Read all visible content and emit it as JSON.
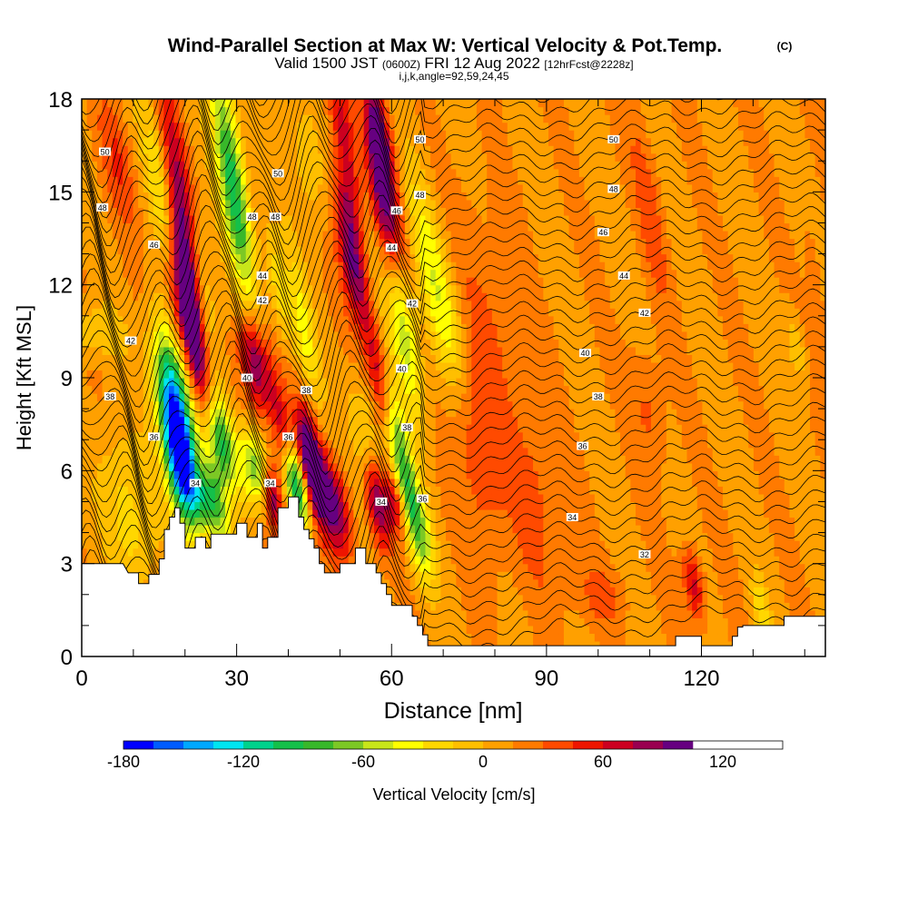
{
  "header": {
    "title": "Wind-Parallel Section at Max W: Vertical Velocity & Pot.Temp.",
    "copyright": "(C)",
    "valid_prefix": "Valid 1500 JST",
    "valid_utc": "(0600Z)",
    "valid_date": "FRI 12 Aug 2022",
    "forecast": "[12hrFcst@2228z]",
    "indices": "i,j,k,angle=92,59,24,45"
  },
  "chart_data": {
    "type": "heatmap",
    "xlabel": "Distance [nm]",
    "ylabel": "Height [Kft MSL]",
    "xlim": [
      0,
      144
    ],
    "ylim": [
      0,
      18
    ],
    "x_ticks": [
      "0",
      "30",
      "60",
      "90",
      "120"
    ],
    "y_ticks": [
      "0",
      "3",
      "6",
      "9",
      "12",
      "15",
      "18"
    ],
    "colorbar": {
      "label": "Vertical Velocity [cm/s]",
      "min": -180,
      "max": 150,
      "step": 15,
      "tick_labels": [
        "-180",
        "-120",
        "-60",
        "0",
        "60",
        "120"
      ],
      "colors": [
        "#0000ff",
        "#005cff",
        "#00a8ff",
        "#00e5f0",
        "#00d28c",
        "#14c04a",
        "#38b82a",
        "#7cc825",
        "#c8e61a",
        "#ffff00",
        "#ffd700",
        "#ffbf00",
        "#ffa000",
        "#ff7a00",
        "#ff4a00",
        "#ee1500",
        "#cc0020",
        "#990050",
        "#660080"
      ]
    },
    "terrain_kft": [
      [
        0,
        3.0
      ],
      [
        8,
        3.0
      ],
      [
        9,
        2.7
      ],
      [
        11,
        2.7
      ],
      [
        11,
        2.35
      ],
      [
        13,
        2.35
      ],
      [
        13,
        2.65
      ],
      [
        15,
        2.65
      ],
      [
        15,
        3.15
      ],
      [
        16,
        3.15
      ],
      [
        16,
        4.1
      ],
      [
        17,
        4.1
      ],
      [
        17,
        4.5
      ],
      [
        18,
        4.5
      ],
      [
        18,
        4.8
      ],
      [
        19,
        4.8
      ],
      [
        19,
        4.3
      ],
      [
        20,
        4.3
      ],
      [
        20,
        3.5
      ],
      [
        22,
        3.5
      ],
      [
        22,
        3.85
      ],
      [
        24,
        3.85
      ],
      [
        24,
        3.5
      ],
      [
        25,
        3.5
      ],
      [
        25,
        3.95
      ],
      [
        30,
        3.95
      ],
      [
        30,
        4.3
      ],
      [
        32,
        4.3
      ],
      [
        32,
        3.85
      ],
      [
        34,
        3.85
      ],
      [
        34,
        4.3
      ],
      [
        35,
        4.3
      ],
      [
        35,
        3.5
      ],
      [
        36,
        3.5
      ],
      [
        36,
        3.85
      ],
      [
        38,
        3.85
      ],
      [
        38,
        4.8
      ],
      [
        40,
        4.8
      ],
      [
        40,
        5.15
      ],
      [
        42,
        5.15
      ],
      [
        42,
        4.5
      ],
      [
        43,
        4.5
      ],
      [
        43,
        4.1
      ],
      [
        44,
        4.1
      ],
      [
        44,
        3.8
      ],
      [
        45,
        3.8
      ],
      [
        45,
        3.5
      ],
      [
        46,
        3.5
      ],
      [
        46,
        3.0
      ],
      [
        47,
        3.0
      ],
      [
        47,
        2.7
      ],
      [
        50,
        2.7
      ],
      [
        50,
        3.0
      ],
      [
        53,
        3.0
      ],
      [
        53,
        3.5
      ],
      [
        55,
        3.5
      ],
      [
        55,
        3.0
      ],
      [
        57,
        3.0
      ],
      [
        57,
        2.7
      ],
      [
        58,
        2.7
      ],
      [
        58,
        2.35
      ],
      [
        59,
        2.35
      ],
      [
        59,
        2.0
      ],
      [
        60,
        2.0
      ],
      [
        60,
        1.65
      ],
      [
        64,
        1.65
      ],
      [
        64,
        1.3
      ],
      [
        65,
        1.3
      ],
      [
        65,
        1.0
      ],
      [
        66,
        1.0
      ],
      [
        66,
        0.7
      ],
      [
        67,
        0.7
      ],
      [
        67,
        0.35
      ],
      [
        115,
        0.35
      ],
      [
        115,
        0.65
      ],
      [
        120,
        0.65
      ],
      [
        120,
        0.35
      ],
      [
        126,
        0.35
      ],
      [
        126,
        0.65
      ],
      [
        127,
        0.65
      ],
      [
        127,
        0.95
      ],
      [
        128,
        0.95
      ],
      [
        128,
        1.0
      ],
      [
        136,
        1.0
      ],
      [
        136,
        1.3
      ],
      [
        144,
        1.3
      ]
    ],
    "isotherm_labels": [
      {
        "x": 4.5,
        "y": 16.3,
        "text": "50"
      },
      {
        "x": 4,
        "y": 14.5,
        "text": "48"
      },
      {
        "x": 14,
        "y": 13.3,
        "text": "46"
      },
      {
        "x": 9.5,
        "y": 10.2,
        "text": "42"
      },
      {
        "x": 5.5,
        "y": 8.4,
        "text": "38"
      },
      {
        "x": 14,
        "y": 7.1,
        "text": "36"
      },
      {
        "x": 22,
        "y": 5.6,
        "text": "34"
      },
      {
        "x": 38,
        "y": 15.6,
        "text": "50"
      },
      {
        "x": 33,
        "y": 14.2,
        "text": "48"
      },
      {
        "x": 37.5,
        "y": 14.2,
        "text": "48"
      },
      {
        "x": 35,
        "y": 12.3,
        "text": "44"
      },
      {
        "x": 35,
        "y": 11.5,
        "text": "42"
      },
      {
        "x": 32,
        "y": 9.0,
        "text": "40"
      },
      {
        "x": 43.5,
        "y": 8.6,
        "text": "38"
      },
      {
        "x": 40,
        "y": 7.1,
        "text": "36"
      },
      {
        "x": 36.5,
        "y": 5.6,
        "text": "34"
      },
      {
        "x": 65.5,
        "y": 16.7,
        "text": "50"
      },
      {
        "x": 65.5,
        "y": 14.9,
        "text": "48"
      },
      {
        "x": 61,
        "y": 14.4,
        "text": "46"
      },
      {
        "x": 60,
        "y": 13.2,
        "text": "44"
      },
      {
        "x": 64,
        "y": 11.4,
        "text": "42"
      },
      {
        "x": 62,
        "y": 9.3,
        "text": "40"
      },
      {
        "x": 63,
        "y": 7.4,
        "text": "38"
      },
      {
        "x": 58,
        "y": 5.0,
        "text": "34"
      },
      {
        "x": 66,
        "y": 5.1,
        "text": "36"
      },
      {
        "x": 103,
        "y": 16.7,
        "text": "50"
      },
      {
        "x": 103,
        "y": 15.1,
        "text": "48"
      },
      {
        "x": 101,
        "y": 13.7,
        "text": "46"
      },
      {
        "x": 105,
        "y": 12.3,
        "text": "44"
      },
      {
        "x": 109,
        "y": 11.1,
        "text": "42"
      },
      {
        "x": 97.5,
        "y": 9.8,
        "text": "40"
      },
      {
        "x": 100,
        "y": 8.4,
        "text": "38"
      },
      {
        "x": 97,
        "y": 6.8,
        "text": "36"
      },
      {
        "x": 95,
        "y": 4.5,
        "text": "34"
      },
      {
        "x": 109,
        "y": 3.3,
        "text": "32"
      }
    ]
  }
}
